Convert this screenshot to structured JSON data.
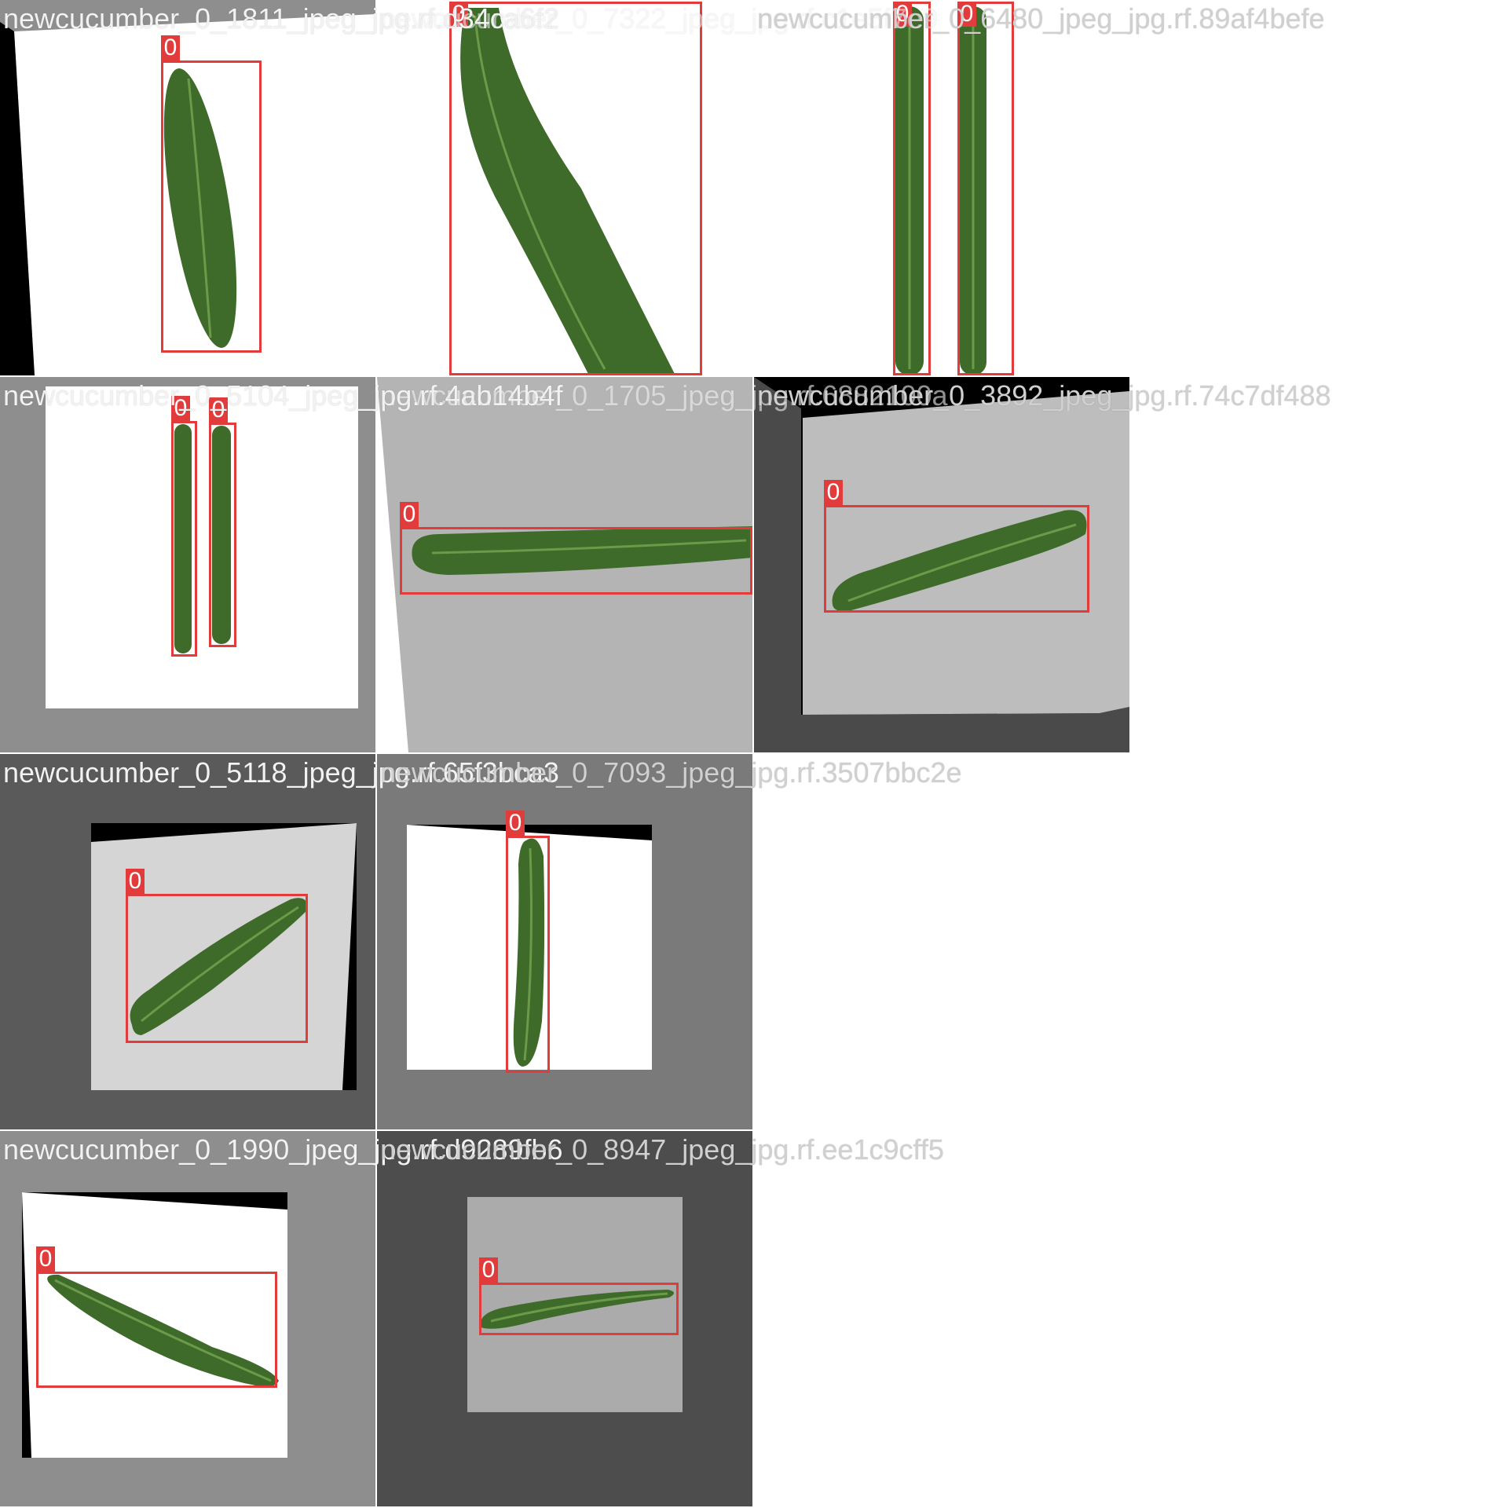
{
  "mosaic": {
    "tiles": [
      {
        "title": "newcucumber_0_1811_jpeg_jpg.rf.d34ca6f2",
        "labels": [
          "0"
        ]
      },
      {
        "title": "newcucumber_0_7322_jpeg_jpg.rf.c1e5f7e9",
        "labels": [
          "0"
        ]
      },
      {
        "title": "newcucumber_0_6480_jpeg_jpg.rf.89af4befe",
        "labels": [
          "0",
          "0"
        ]
      },
      {
        "title": "newcucumber_0_5104_jpeg_jpg.rf.4ab14b4f",
        "labels": [
          "0",
          "0"
        ]
      },
      {
        "title": "newcucumber_0_1705_jpeg_jpg.rf.6882100a",
        "labels": [
          "0"
        ]
      },
      {
        "title": "newcucumber_0_3892_jpeg_jpg.rf.74c7df488",
        "labels": [
          "0"
        ]
      },
      {
        "title": "newcucumber_0_5118_jpeg_jpg.rf.65f3bca3",
        "labels": [
          "0"
        ]
      },
      {
        "title": "newcucumber_0_7093_jpeg_jpg.rf.3507bbc2e",
        "labels": [
          "0"
        ]
      },
      {
        "title": "newcucumber_0_1990_jpeg_jpg.rf.d9289fb6",
        "labels": [
          "0"
        ]
      },
      {
        "title": "newcucumber_0_8947_jpeg_jpg.rf.ee1c9cff5",
        "labels": [
          "0"
        ]
      }
    ],
    "box_color": "#e23b3b",
    "cucumber_color": "#3e6b2a"
  }
}
